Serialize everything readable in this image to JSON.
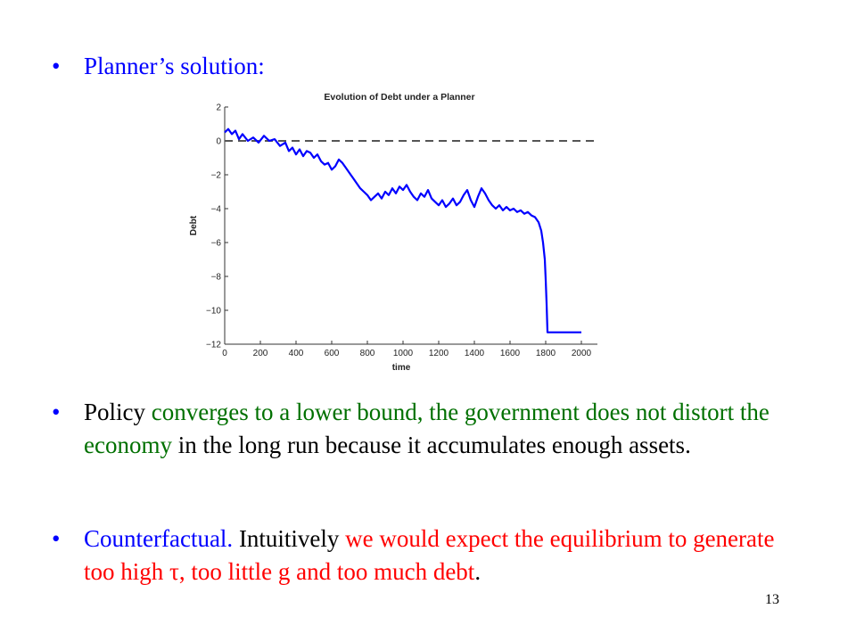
{
  "bullets": {
    "b1": {
      "text": "Planner’s solution:"
    },
    "b2": {
      "part1": "Policy ",
      "part2": "converges to a lower bound, the government does not distort the economy",
      "part3": " in the long run because it accumulates enough assets."
    },
    "b3": {
      "part1": "Counterfactual.",
      "part2": "  Intuitively ",
      "part3": "we would expect the equilibrium to generate too high τ, too little g and too much debt",
      "part4": "."
    }
  },
  "page_number": "13",
  "colors": {
    "blue": "#0000ff",
    "green": "#007000",
    "red": "#ff0000",
    "series": "#0000ff",
    "reference": "#555555"
  },
  "chart_data": {
    "type": "line",
    "title": "Evolution of Debt under a Planner",
    "xlabel": "time",
    "ylabel": "Debt",
    "xlim": [
      0,
      2000
    ],
    "ylim": [
      -12,
      2
    ],
    "xticks": [
      0,
      200,
      400,
      600,
      800,
      1000,
      1200,
      1400,
      1600,
      1800,
      2000
    ],
    "yticks": [
      2,
      0,
      -2,
      -4,
      -6,
      -8,
      -10,
      -12
    ],
    "grid": false,
    "series": [
      {
        "x": [
          0,
          20,
          40,
          60,
          80,
          100,
          130,
          160,
          190,
          220,
          250,
          280,
          310,
          340,
          360,
          380,
          400,
          420,
          440,
          460,
          480,
          500,
          520,
          540,
          560,
          580,
          600,
          620,
          640,
          660,
          680,
          700,
          720,
          740,
          760,
          780,
          800,
          820,
          840,
          860,
          880,
          900,
          920,
          940,
          960,
          980,
          1000,
          1020,
          1040,
          1060,
          1080,
          1100,
          1120,
          1140,
          1160,
          1180,
          1200,
          1220,
          1240,
          1260,
          1280,
          1300,
          1320,
          1340,
          1360,
          1380,
          1400,
          1420,
          1440,
          1460,
          1480,
          1500,
          1520,
          1540,
          1560,
          1580,
          1600,
          1620,
          1640,
          1660,
          1680,
          1700,
          1720,
          1740,
          1760,
          1775,
          1785,
          1795,
          1800,
          1805,
          1810,
          1830,
          1860,
          1900,
          1950,
          2000
        ],
        "y": [
          0.5,
          0.7,
          0.4,
          0.6,
          0.1,
          0.4,
          0.0,
          0.2,
          -0.1,
          0.3,
          0.0,
          0.1,
          -0.3,
          -0.1,
          -0.6,
          -0.4,
          -0.8,
          -0.5,
          -0.9,
          -0.6,
          -0.7,
          -1.0,
          -0.8,
          -1.2,
          -1.4,
          -1.3,
          -1.7,
          -1.5,
          -1.1,
          -1.3,
          -1.6,
          -1.9,
          -2.2,
          -2.5,
          -2.8,
          -3.0,
          -3.2,
          -3.5,
          -3.3,
          -3.1,
          -3.4,
          -3.0,
          -3.2,
          -2.8,
          -3.1,
          -2.7,
          -2.9,
          -2.6,
          -3.0,
          -3.3,
          -3.5,
          -3.1,
          -3.3,
          -2.9,
          -3.4,
          -3.6,
          -3.8,
          -3.5,
          -3.9,
          -3.7,
          -3.4,
          -3.8,
          -3.6,
          -3.2,
          -2.9,
          -3.5,
          -3.9,
          -3.3,
          -2.8,
          -3.1,
          -3.5,
          -3.8,
          -4.0,
          -3.8,
          -4.1,
          -3.9,
          -4.1,
          -4.0,
          -4.2,
          -4.1,
          -4.3,
          -4.2,
          -4.4,
          -4.5,
          -4.8,
          -5.3,
          -6.0,
          -7.0,
          -8.2,
          -9.6,
          -11.3,
          -11.3,
          -11.3,
          -11.3,
          -11.3,
          -11.3
        ]
      },
      {
        "x": [
          0,
          2100
        ],
        "y": [
          0,
          0
        ]
      }
    ]
  }
}
